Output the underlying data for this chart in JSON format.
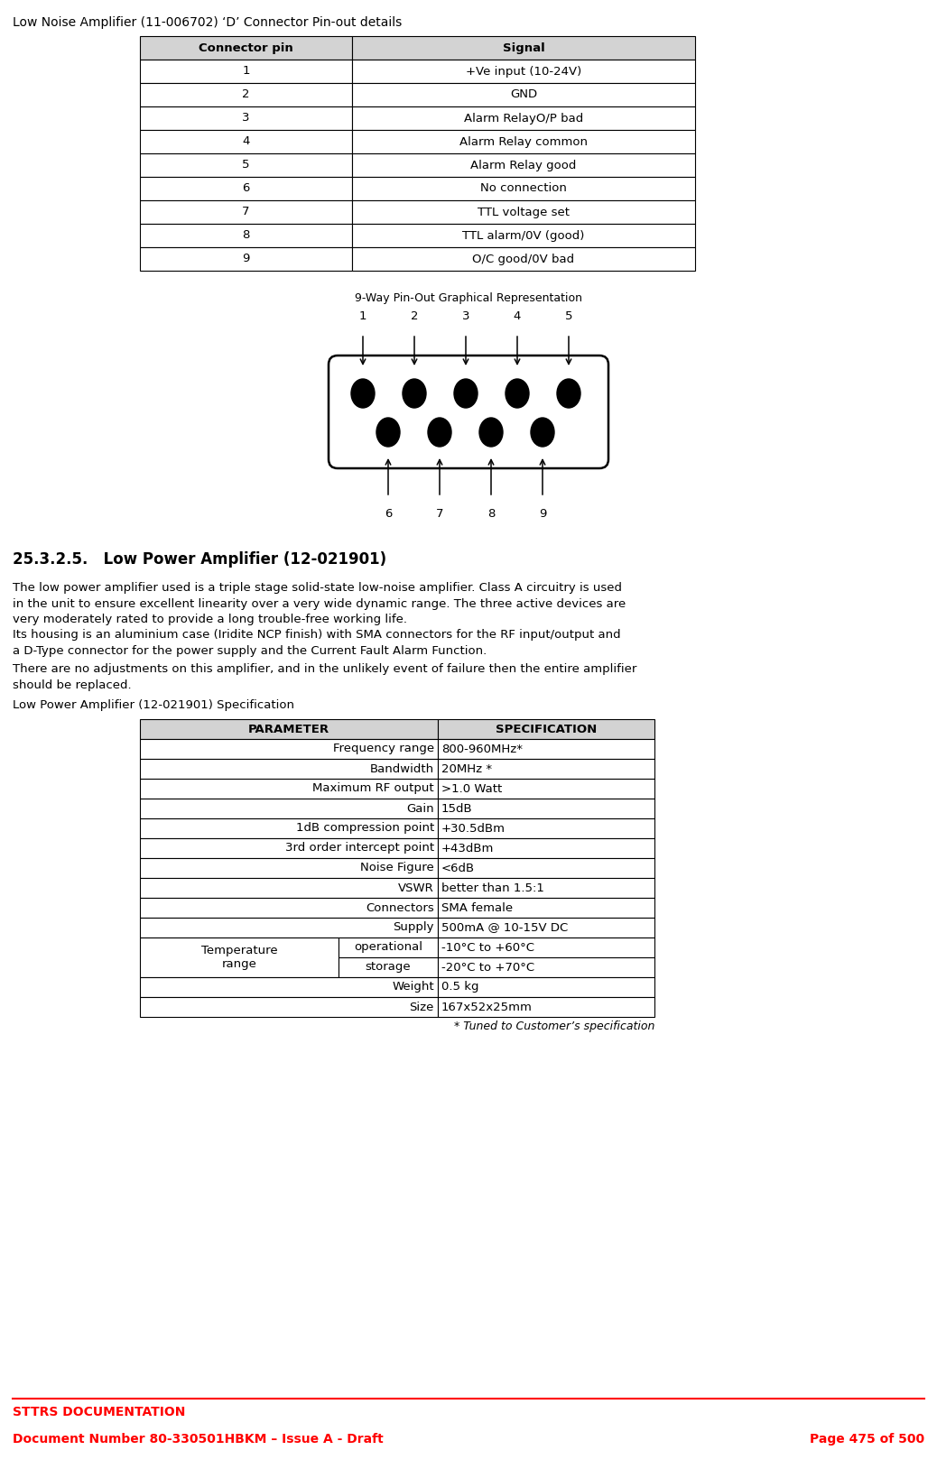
{
  "title_top": "Low Noise Amplifier (11-006702) ‘D’ Connector Pin-out details",
  "table1_headers": [
    "Connector pin",
    "Signal"
  ],
  "table1_rows": [
    [
      "1",
      "+Ve input (10-24V)"
    ],
    [
      "2",
      "GND"
    ],
    [
      "3",
      "Alarm RelayO/P bad"
    ],
    [
      "4",
      "Alarm Relay common"
    ],
    [
      "5",
      "Alarm Relay good"
    ],
    [
      "6",
      "No connection"
    ],
    [
      "7",
      "TTL voltage set"
    ],
    [
      "8",
      "TTL alarm/0V (good)"
    ],
    [
      "9",
      "O/C good/0V bad"
    ]
  ],
  "pinout_title": "9-Way Pin-Out Graphical Representation",
  "top_pins": [
    "1",
    "2",
    "3",
    "4",
    "5"
  ],
  "bottom_pins": [
    "6",
    "7",
    "8",
    "9"
  ],
  "section_heading": "25.3.2.5.   Low Power Amplifier (12-021901)",
  "body_text1": "The low power amplifier used is a triple stage solid-state low-noise amplifier. Class A circuitry is used\nin the unit to ensure excellent linearity over a very wide dynamic range. The three active devices are\nvery moderately rated to provide a long trouble-free working life.",
  "body_text2": "Its housing is an aluminium case (Iridite NCP finish) with SMA connectors for the RF input/output and\na D-Type connector for the power supply and the Current Fault Alarm Function.",
  "body_text3": "There are no adjustments on this amplifier, and in the unlikely event of failure then the entire amplifier\nshould be replaced.",
  "table2_title": "Low Power Amplifier (12-021901) Specification",
  "table2_headers": [
    "PARAMETER",
    "SPECIFICATION"
  ],
  "table2_rows": [
    [
      "Frequency range",
      "800-960MHz*"
    ],
    [
      "Bandwidth",
      "20MHz *"
    ],
    [
      "Maximum RF output",
      ">1.0 Watt"
    ],
    [
      "Gain",
      "15dB"
    ],
    [
      "1dB compression point",
      "+30.5dBm"
    ],
    [
      "3rd order intercept point",
      "+43dBm"
    ],
    [
      "Noise Figure",
      "<6dB"
    ],
    [
      "VSWR",
      "better than 1.5:1"
    ],
    [
      "Connectors",
      "SMA female"
    ],
    [
      "Supply",
      "500mA @ 10-15V DC"
    ],
    [
      "Temperature range",
      "operational",
      "-10°C to +60°C"
    ],
    [
      "",
      "storage",
      "-20°C to +70°C"
    ],
    [
      "Weight",
      "",
      "0.5 kg"
    ],
    [
      "Size",
      "",
      "167x52x25mm"
    ]
  ],
  "table2_footnote": "* Tuned to Customer’s specification",
  "footer_line1": "STTRS DOCUMENTATION",
  "footer_line2": "Document Number 80-330501HBKM – Issue A - Draft",
  "footer_line3": "Page 475 of 500",
  "header_bg": "#d3d3d3",
  "red_color": "#ff0000"
}
